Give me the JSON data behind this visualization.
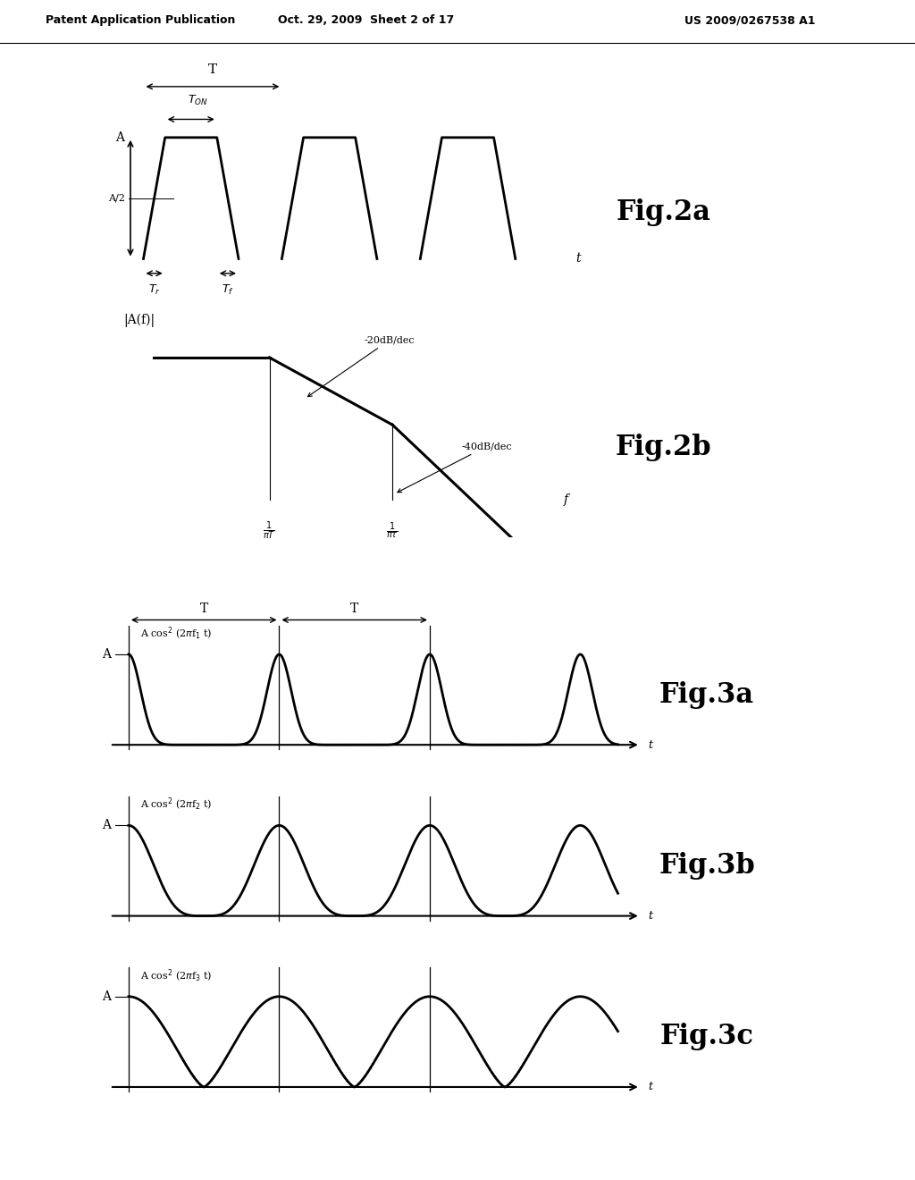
{
  "bg_color": "#ffffff",
  "header_text": "Patent Application Publication",
  "header_date": "Oct. 29, 2009  Sheet 2 of 17",
  "header_patent": "US 2009/0267538 A1",
  "fig2a_label": "Fig.2a",
  "fig2b_label": "Fig.2b",
  "fig3a_label": "Fig.3a",
  "fig3b_label": "Fig.3b",
  "fig3c_label": "Fig.3c",
  "lw": 2.0
}
